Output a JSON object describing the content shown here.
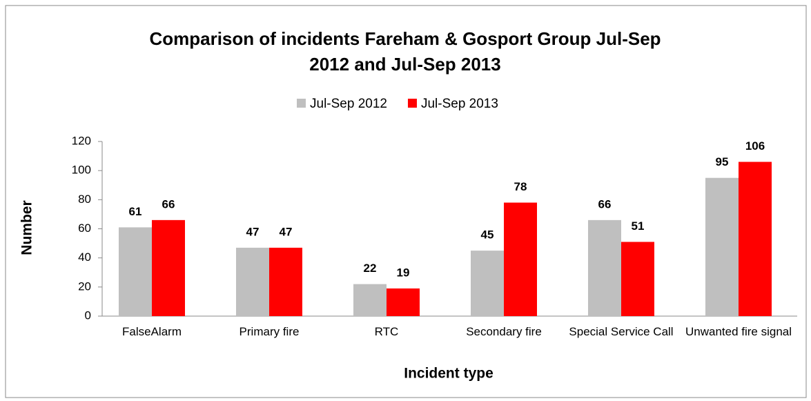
{
  "chart_data": {
    "type": "bar",
    "title": "Comparison of incidents Fareham & Gosport Group Jul-Sep 2012 and Jul-Sep  2013",
    "categories": [
      "FalseAlarm",
      "Primary fire",
      "RTC",
      "Secondary fire",
      "Special Service Call",
      "Unwanted fire signal"
    ],
    "series": [
      {
        "name": "Jul-Sep 2012",
        "color": "#bfbfbf",
        "values": [
          61,
          47,
          22,
          45,
          66,
          95
        ]
      },
      {
        "name": "Jul-Sep 2013",
        "color": "#ff0000",
        "values": [
          66,
          47,
          19,
          78,
          51,
          106
        ]
      }
    ],
    "ylim": [
      0,
      120
    ],
    "yticks": [
      0,
      20,
      40,
      60,
      80,
      100,
      120
    ],
    "y_label": "Number",
    "x_label": "Incident type",
    "legend": "top",
    "grid": false
  }
}
